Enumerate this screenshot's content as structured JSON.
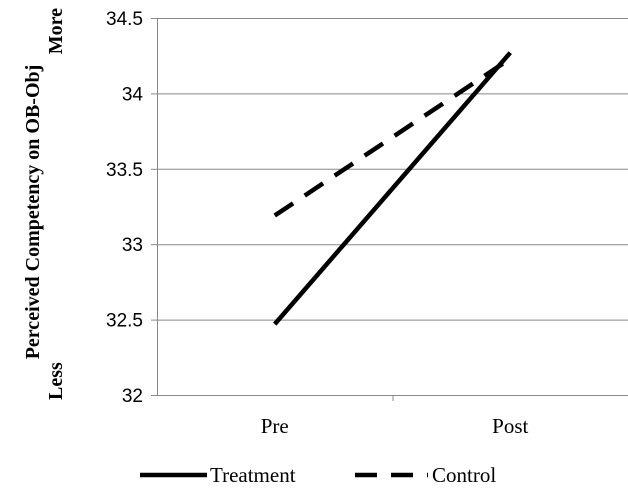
{
  "chart_data": {
    "type": "line",
    "categories": [
      "Pre",
      "Post"
    ],
    "series": [
      {
        "name": "Treatment",
        "values": [
          32.47,
          34.27
        ],
        "color": "#000000",
        "dash": "solid"
      },
      {
        "name": "Control",
        "values": [
          33.19,
          34.23
        ],
        "color": "#000000",
        "dash": "dashed"
      }
    ],
    "title": "",
    "xlabel": "",
    "ylabel_lines": [
      "More",
      "Perceived Competency on OB-Obj",
      "Less"
    ],
    "ylim": [
      32,
      34.5
    ],
    "yticks": [
      32,
      32.5,
      33,
      33.5,
      34,
      34.5
    ],
    "ytick_labels": [
      "32",
      "32.5",
      "33",
      "33.5",
      "34",
      "34.5"
    ],
    "grid": true,
    "legend_position": "bottom"
  }
}
